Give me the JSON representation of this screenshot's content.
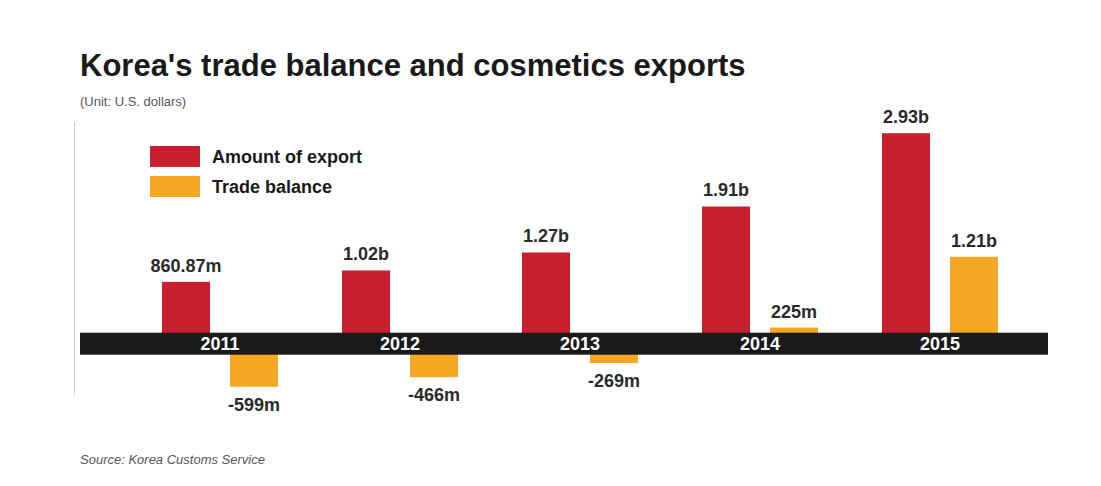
{
  "chart_data": {
    "type": "bar",
    "title": "Korea's trade balance and cosmetics exports",
    "subtitle": "(Unit: U.S. dollars)",
    "source": "Source: Korea Customs Service",
    "categories": [
      "2011",
      "2012",
      "2013",
      "2014",
      "2015"
    ],
    "series": [
      {
        "name": "Amount of export",
        "color": "#c8202f",
        "values": [
          860.87,
          1020,
          1270,
          1910,
          2930
        ],
        "value_labels": [
          "860.87m",
          "1.02b",
          "1.27b",
          "1.91b",
          "2.93b"
        ]
      },
      {
        "name": "Trade balance",
        "color": "#f5a623",
        "values": [
          -599,
          -466,
          -269,
          225,
          1210
        ],
        "value_labels": [
          "-599m",
          "-466m",
          "-269m",
          "225m",
          "1.21b"
        ]
      }
    ],
    "ylim": [
      -700,
      3100
    ],
    "yticks": [],
    "data_labels": true,
    "tick_labels": "x",
    "legend": "top-left"
  }
}
